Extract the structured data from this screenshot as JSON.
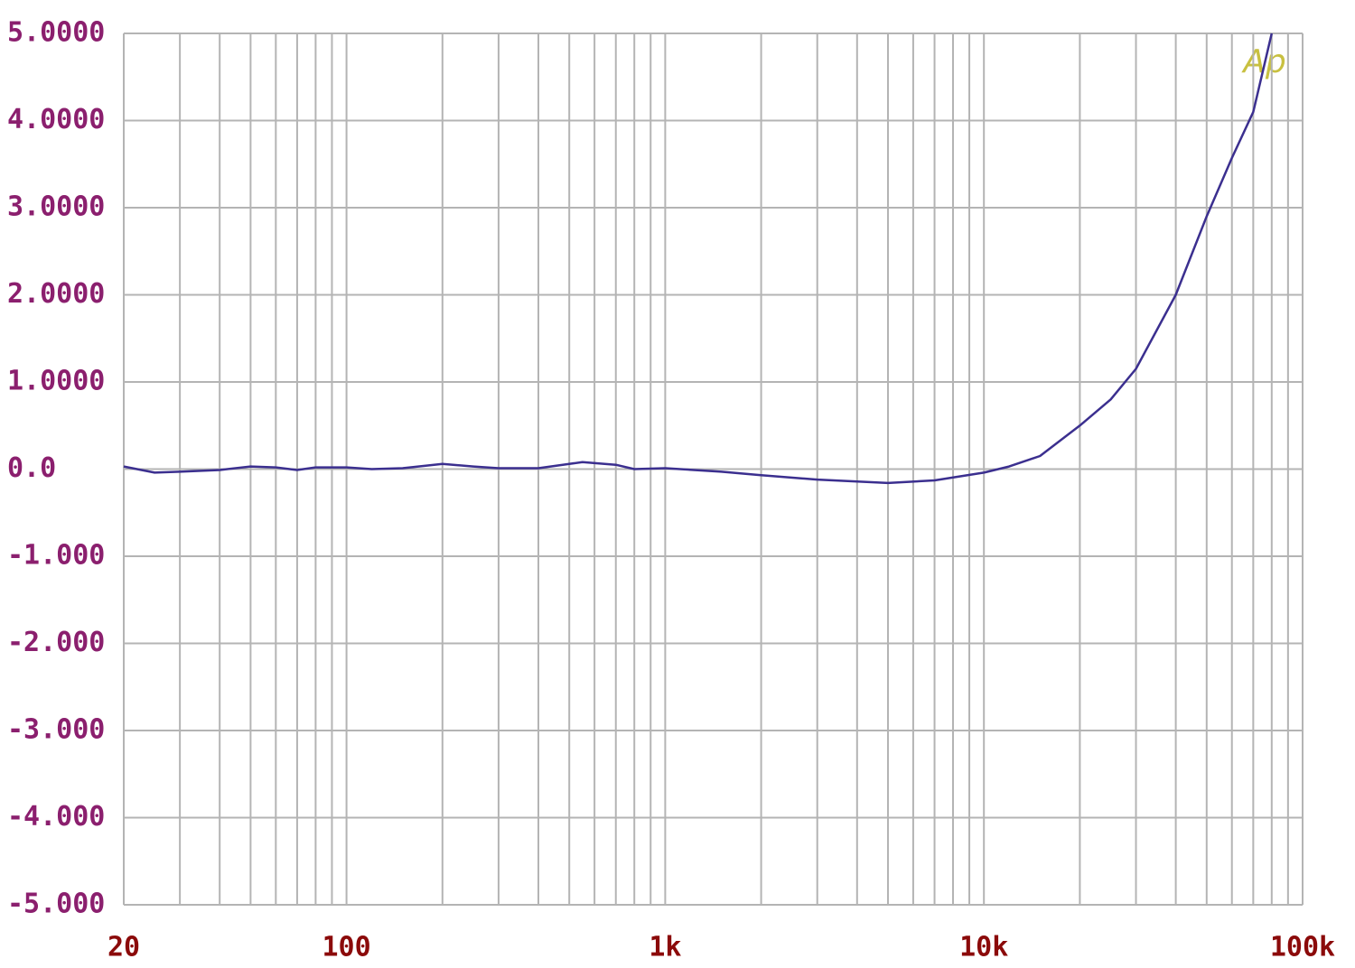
{
  "chart_data": {
    "type": "line",
    "x_scale": "log",
    "logo": "Ap",
    "series": [
      {
        "color": "#3b2f8f",
        "x": [
          20,
          25,
          30,
          40,
          50,
          60,
          70,
          80,
          100,
          120,
          150,
          200,
          250,
          300,
          400,
          500,
          550,
          700,
          800,
          1000,
          1500,
          2000,
          3000,
          5000,
          7000,
          10000,
          12000,
          15000,
          20000,
          25000,
          30000,
          40000,
          50000,
          60000,
          70000,
          80000
        ],
        "values": [
          0.03,
          -0.04,
          -0.03,
          -0.01,
          0.03,
          0.02,
          -0.01,
          0.02,
          0.02,
          0.0,
          0.01,
          0.06,
          0.03,
          0.01,
          0.01,
          0.06,
          0.08,
          0.05,
          0.0,
          0.01,
          -0.03,
          -0.07,
          -0.12,
          -0.16,
          -0.13,
          -0.04,
          0.03,
          0.15,
          0.5,
          0.8,
          1.15,
          2.0,
          2.9,
          3.57,
          4.1,
          5.0
        ]
      }
    ],
    "xlim": [
      20,
      100000
    ],
    "xticks": [
      20,
      100,
      {
        "value": 1000,
        "label": "1k"
      },
      {
        "value": 10000,
        "label": "10k"
      },
      {
        "value": 100000,
        "label": "100k"
      }
    ],
    "x_minor_grid": [
      30,
      40,
      50,
      60,
      70,
      80,
      90,
      200,
      300,
      400,
      500,
      600,
      700,
      800,
      900,
      2000,
      3000,
      4000,
      5000,
      6000,
      7000,
      8000,
      9000,
      20000,
      30000,
      40000,
      50000,
      60000,
      70000,
      80000,
      90000
    ],
    "ylim": [
      -5,
      5
    ],
    "yticks": [
      {
        "value": 5,
        "label": "5.0000"
      },
      {
        "value": 4,
        "label": "4.0000"
      },
      {
        "value": 3,
        "label": "3.0000"
      },
      {
        "value": 2,
        "label": "2.0000"
      },
      {
        "value": 1,
        "label": "1.0000"
      },
      {
        "value": 0,
        "label": "0.0"
      },
      {
        "value": -1,
        "label": "-1.000"
      },
      {
        "value": -2,
        "label": "-2.000"
      },
      {
        "value": -3,
        "label": "-3.000"
      },
      {
        "value": -4,
        "label": "-4.000"
      },
      {
        "value": -5,
        "label": "-5.000"
      }
    ],
    "ytick_color": "#8b1f6e",
    "xtick_color": "#8b0a0a",
    "logo_color": "#c8c040",
    "grid": true
  }
}
